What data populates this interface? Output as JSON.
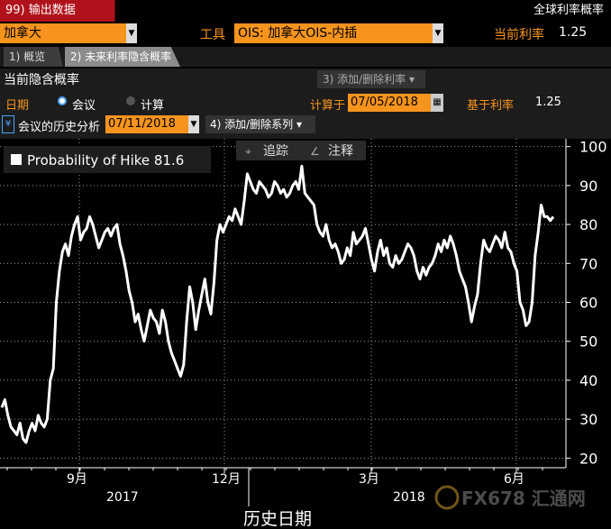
{
  "header": {
    "menu_button": "99) 输出数据",
    "title": "全球利率概率"
  },
  "instrument_row": {
    "country": "加拿大",
    "tool_label": "工具",
    "tool_value": "OIS: 加拿大OIS-内插",
    "rate_label": "当前利率",
    "rate_value": "1.25"
  },
  "tabs": [
    {
      "label": "1) 概览"
    },
    {
      "label": "2) 未来利率隐含概率"
    }
  ],
  "panel": {
    "heading": "当前隐含概率",
    "add_remove_rate": "3) 添加/删除利率",
    "date_label": "日期",
    "radio_meeting": "会议",
    "radio_calc": "计算",
    "calc_on_label": "计算于",
    "calc_on_date": "07/05/2018",
    "based_on_rate_label": "基于利率",
    "based_on_rate_value": "1.25",
    "history_label": "会议的历史分析",
    "history_date": "07/11/2018",
    "add_remove_series": "4) 添加/删除系列"
  },
  "toolbar": {
    "track": "追踪",
    "annotate": "注释"
  },
  "chart_data": {
    "type": "line",
    "legend": "Probability of Hike 81.6",
    "xlabel": "历史日期",
    "month_ticks": [
      "9月",
      "12月",
      "3月",
      "6月"
    ],
    "year_labels": [
      "2017",
      "2018"
    ],
    "ylim": [
      18,
      102
    ],
    "y_ticks": [
      20,
      30,
      40,
      50,
      60,
      70,
      80,
      90,
      100
    ],
    "series": [
      {
        "values": [
          33,
          35,
          31,
          28,
          27,
          26,
          29,
          25,
          24,
          27,
          29,
          27,
          31,
          29,
          28,
          30,
          40,
          43,
          60,
          68,
          73,
          75,
          72,
          77,
          80,
          82,
          76,
          78,
          79,
          82,
          80,
          77,
          74,
          76,
          78,
          79,
          77,
          79,
          80,
          75,
          72,
          68,
          63,
          60,
          55,
          57,
          53,
          50,
          54,
          58,
          56,
          55,
          52,
          58,
          55,
          50,
          47,
          45,
          43,
          41,
          44,
          55,
          64,
          60,
          53,
          58,
          62,
          66,
          60,
          57,
          65,
          76,
          80,
          78,
          80,
          82,
          81,
          84,
          82,
          80,
          86,
          93,
          91,
          89,
          88,
          91,
          90,
          89,
          87,
          88,
          91,
          90,
          88,
          89,
          87,
          88,
          90,
          91,
          89,
          95,
          88,
          87,
          86,
          85,
          80,
          78,
          77,
          80,
          76,
          74,
          75,
          73,
          70,
          71,
          74,
          72,
          78,
          75,
          76,
          77,
          79,
          75,
          71,
          68,
          73,
          76,
          72,
          74,
          70,
          69,
          72,
          70,
          71,
          73,
          75,
          74,
          72,
          68,
          66,
          69,
          67,
          69,
          70,
          72,
          75,
          73,
          76,
          74,
          77,
          75,
          72,
          68,
          66,
          64,
          60,
          55,
          59,
          62,
          70,
          76,
          74,
          73,
          75,
          77,
          76,
          74,
          78,
          74,
          73,
          70,
          68,
          60,
          58,
          54,
          55,
          60,
          72,
          78,
          85,
          82,
          82,
          81,
          82
        ]
      }
    ]
  },
  "watermark": "FX678 汇通网"
}
